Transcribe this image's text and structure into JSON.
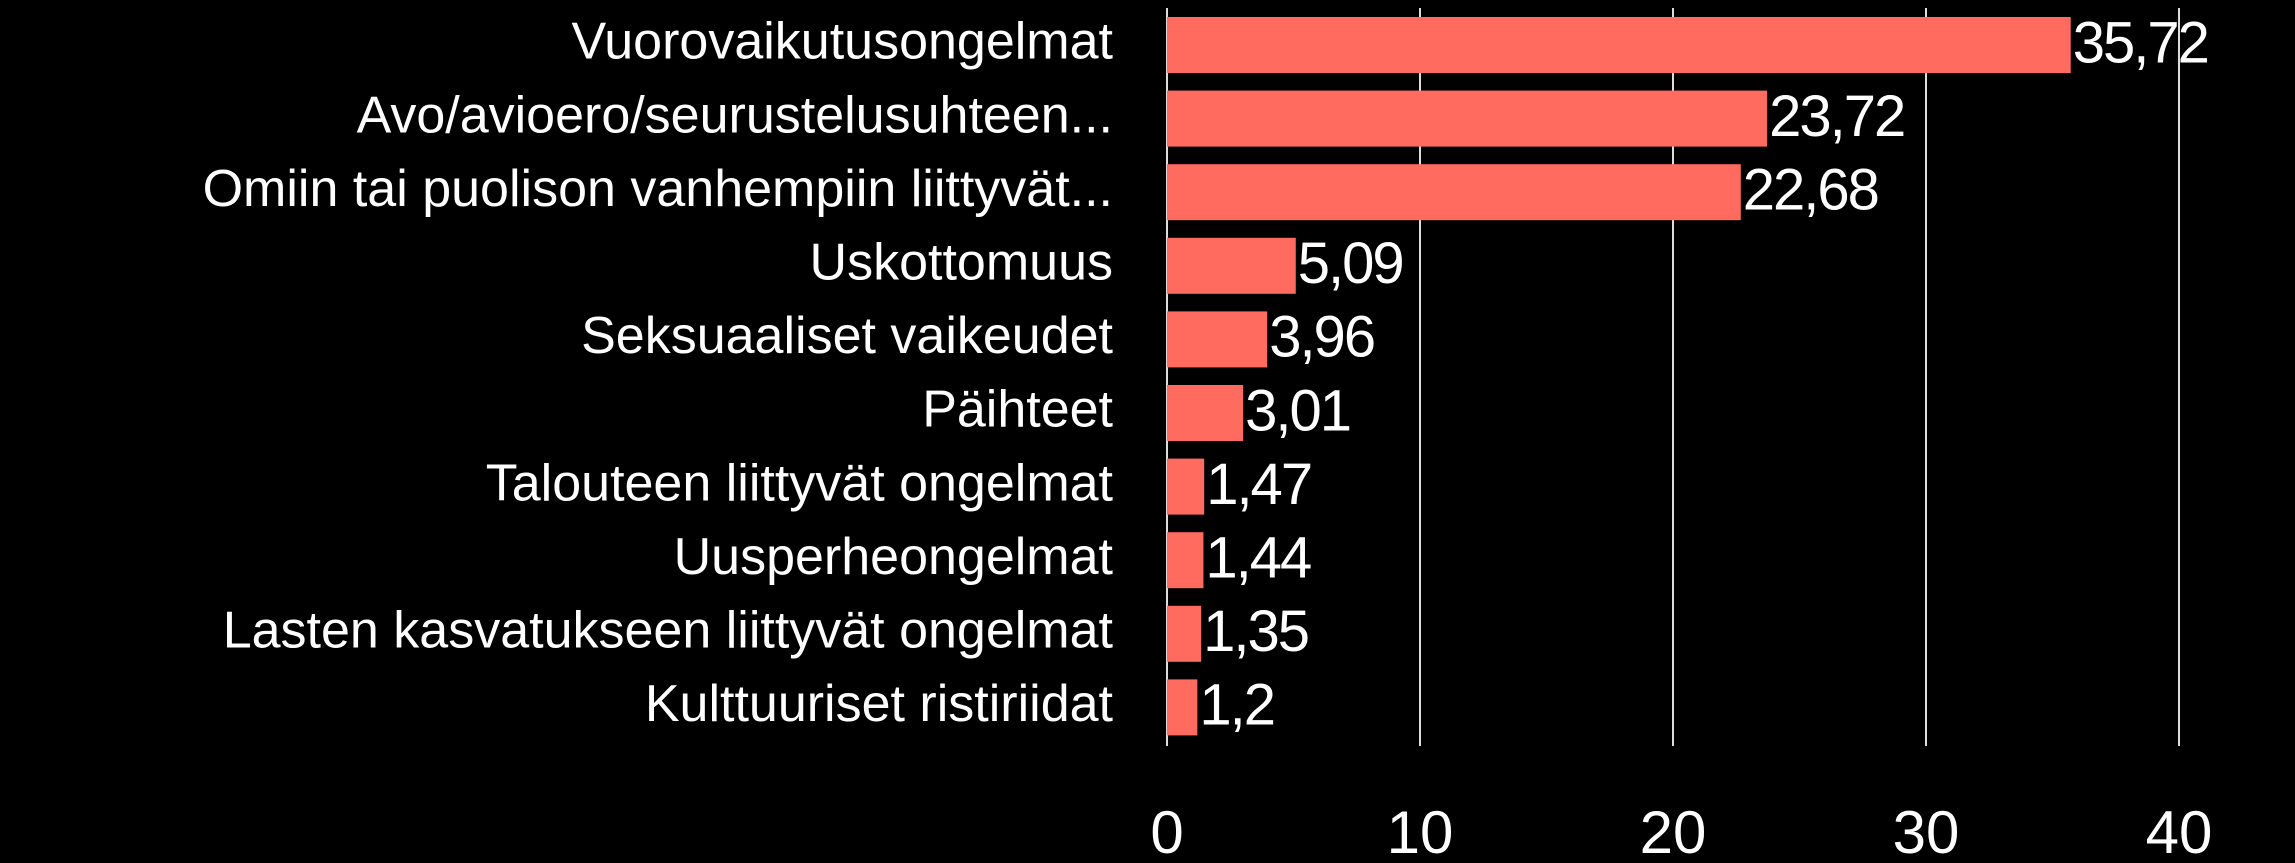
{
  "chart_data": {
    "type": "barh",
    "categories": [
      "Vuorovaikutusongelmat",
      "Avo/avioero/seurustelusuhteen...",
      "Omiin tai puolison vanhempiin liittyvät...",
      "Uskottomuus",
      "Seksuaaliset vaikeudet",
      "Päihteet",
      "Talouteen liittyvät ongelmat",
      "Uusperheongelmat",
      "Lasten kasvatukseen liittyvät ongelmat",
      "Kulttuuriset ristiriidat"
    ],
    "values": [
      35.72,
      23.72,
      22.68,
      5.09,
      3.96,
      3.01,
      1.47,
      1.44,
      1.35,
      1.2
    ],
    "value_labels": [
      "35,72",
      "23,72",
      "22,68",
      "5,09",
      "3,96",
      "3,01",
      "1,47",
      "1,44",
      "1,35",
      "1,2"
    ],
    "color": "#ff6b5f",
    "xlim": [
      0,
      40
    ],
    "xticks": [
      0,
      10,
      20,
      30,
      40
    ],
    "grid": true
  }
}
